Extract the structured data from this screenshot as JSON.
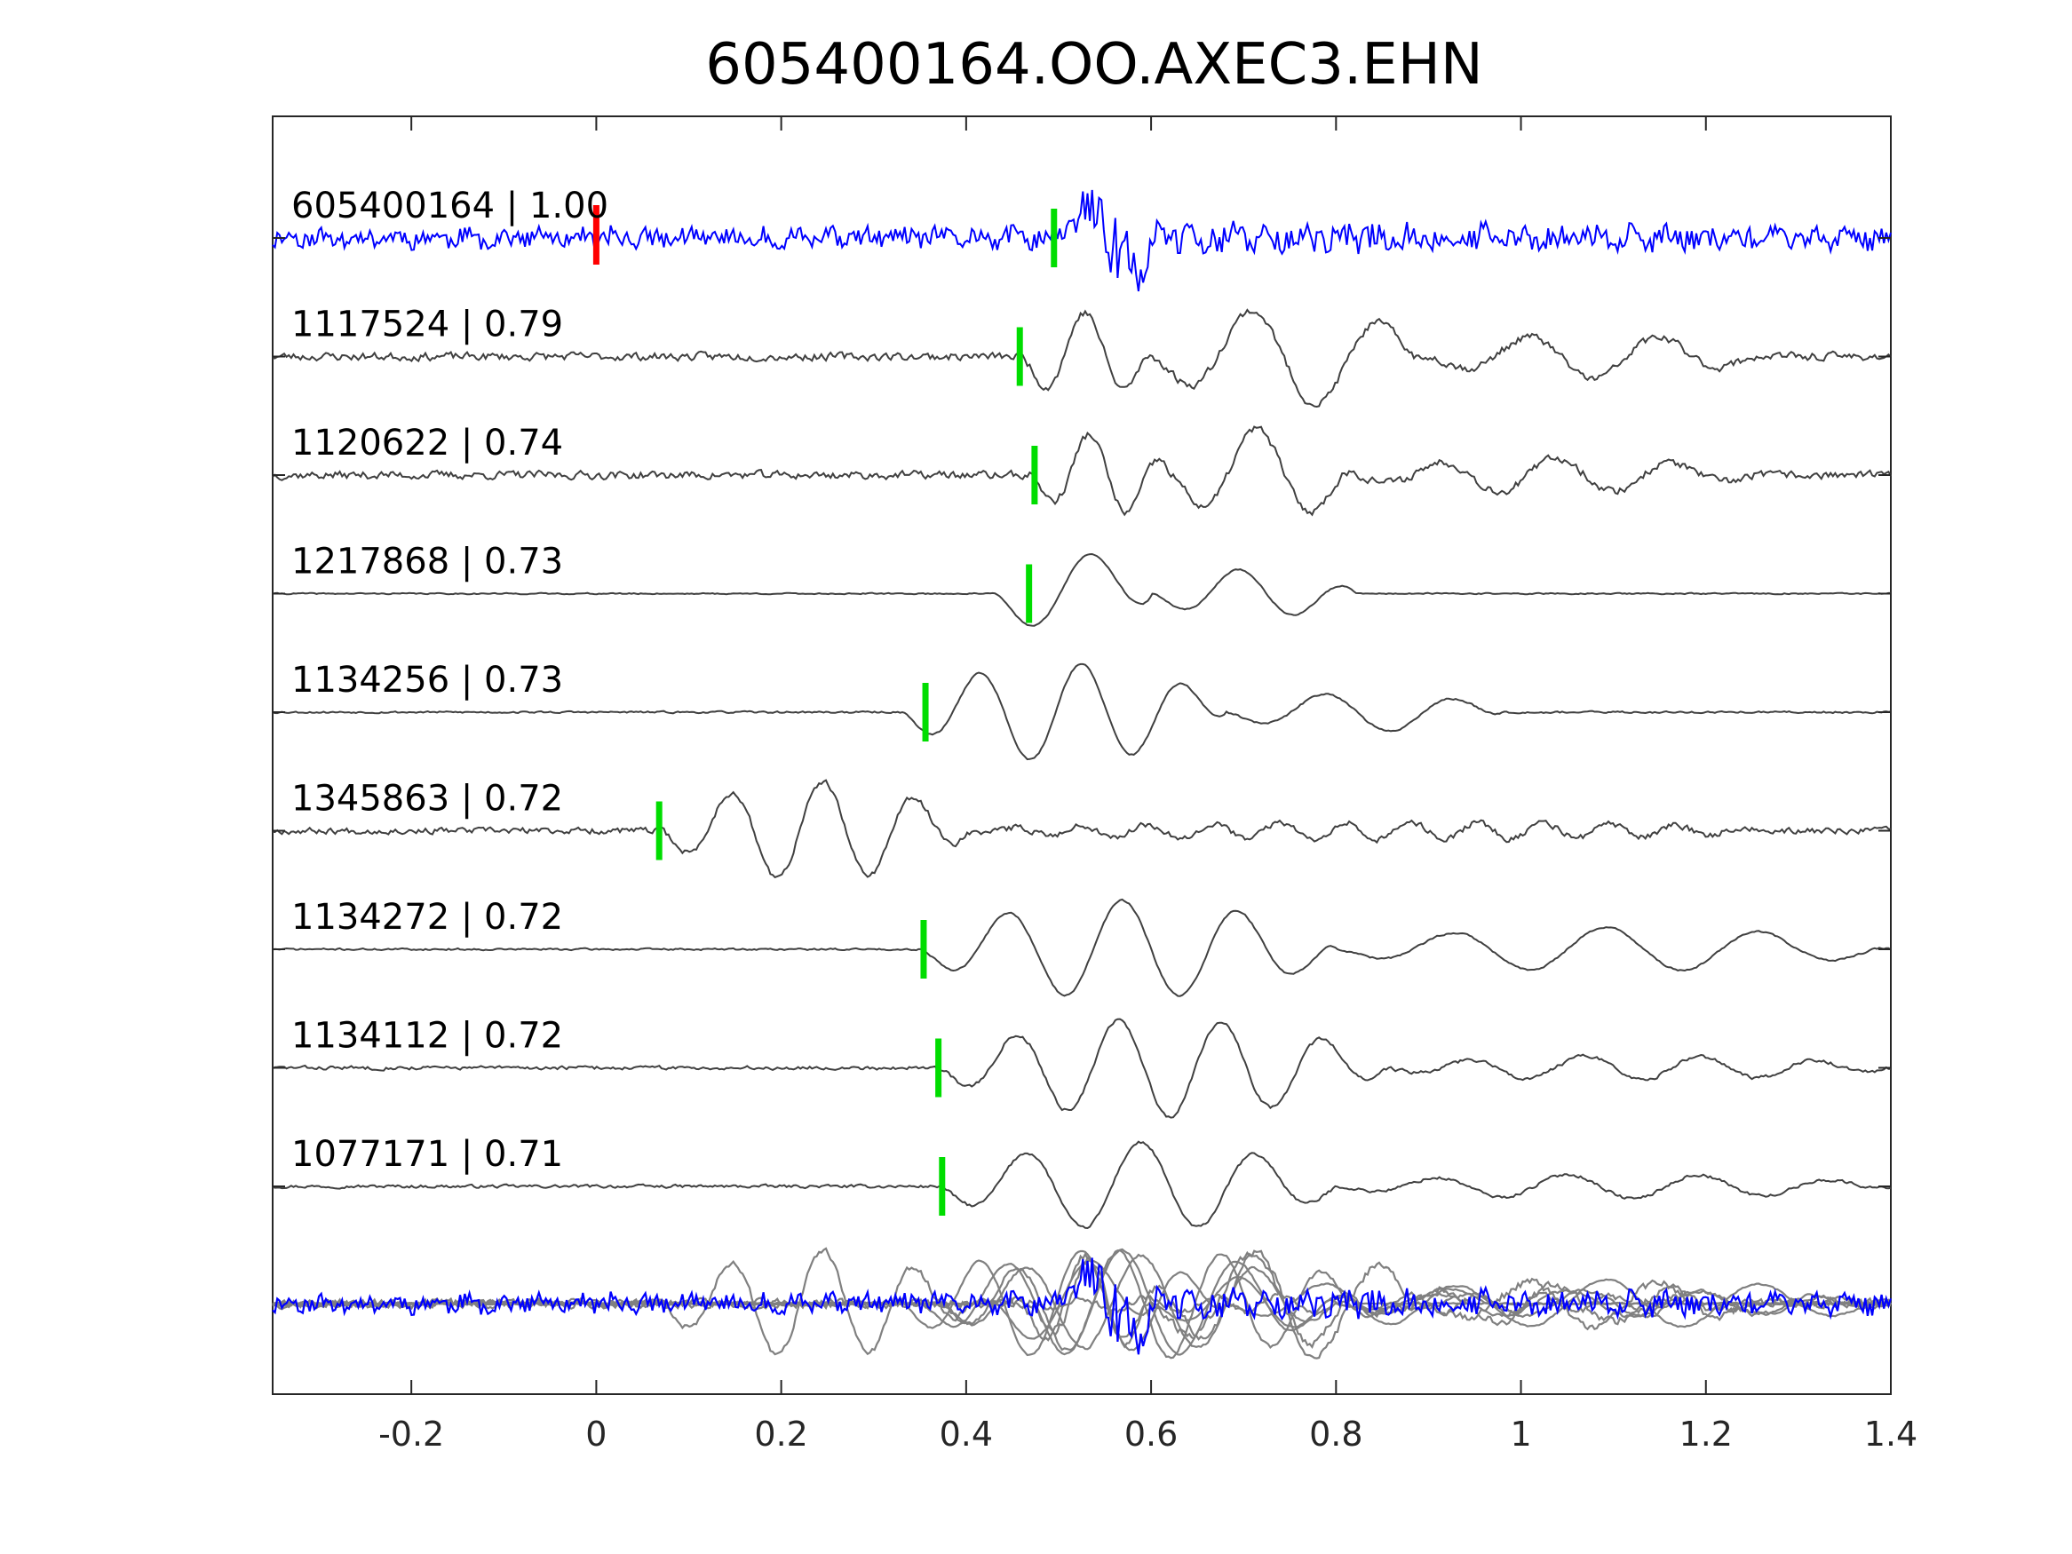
{
  "chart_data": {
    "type": "line",
    "title": "605400164.OO.AXEC3.EHN",
    "xlabel": "",
    "ylabel": "",
    "xlim": [
      -0.35,
      1.4
    ],
    "x_ticks": [
      -0.2,
      0,
      0.2,
      0.4,
      0.6,
      0.8,
      1,
      1.2,
      1.4
    ],
    "x_tick_labels": [
      "-0.2",
      "0",
      "0.2",
      "0.4",
      "0.6",
      "0.8",
      "1",
      "1.2",
      "1.4"
    ],
    "grid": false,
    "legend": "none",
    "colors": {
      "target": "#0000ff",
      "template": "#404040",
      "stack_template": "#808080",
      "pick_target": "#ff0000",
      "pick_template": "#00dd00",
      "axes": "#262626"
    },
    "traces": [
      {
        "label": "605400164 | 1.00",
        "id": "605400164",
        "cc": 1.0,
        "pick_time": 0.0,
        "arrival_time": 0.495,
        "color": "target",
        "env": [
          [
            -0.35,
            0.18
          ],
          [
            0.5,
            0.22
          ],
          [
            0.52,
            0.6
          ],
          [
            0.56,
            1.0
          ],
          [
            0.6,
            0.5
          ],
          [
            0.7,
            0.3
          ],
          [
            1.4,
            0.22
          ]
        ],
        "noise": 0.18,
        "seed": 11
      },
      {
        "label": "1117524 | 0.79",
        "id": "1117524",
        "cc": 0.79,
        "arrival_time": 0.458,
        "color": "template",
        "osc": [
          [
            0.46,
            0.6,
            0.9,
            11
          ],
          [
            0.6,
            0.9,
            1.0,
            7
          ],
          [
            0.9,
            1.25,
            0.45,
            7
          ]
        ],
        "noise": 0.13,
        "seed": 23
      },
      {
        "label": "1120622 | 0.74",
        "id": "1120622",
        "cc": 0.74,
        "arrival_time": 0.474,
        "color": "template",
        "osc": [
          [
            0.47,
            0.62,
            0.85,
            12
          ],
          [
            0.62,
            0.82,
            0.95,
            8
          ],
          [
            0.82,
            1.25,
            0.35,
            8
          ]
        ],
        "noise": 0.13,
        "seed": 37
      },
      {
        "label": "1217868 | 0.73",
        "id": "1217868",
        "cc": 0.73,
        "arrival_time": 0.468,
        "color": "template",
        "osc": [
          [
            0.43,
            0.6,
            0.85,
            7
          ],
          [
            0.6,
            0.82,
            0.5,
            8
          ]
        ],
        "noise": 0.02,
        "seed": 41
      },
      {
        "label": "1134256 | 0.73",
        "id": "1134256",
        "cc": 0.73,
        "arrival_time": 0.356,
        "color": "template",
        "osc": [
          [
            0.33,
            0.68,
            1.0,
            9
          ],
          [
            0.68,
            0.98,
            0.4,
            7
          ]
        ],
        "noise": 0.03,
        "seed": 53
      },
      {
        "label": "1345863 | 0.72",
        "id": "1345863",
        "cc": 0.72,
        "arrival_time": 0.068,
        "color": "template",
        "osc": [
          [
            0.07,
            0.4,
            1.0,
            10
          ],
          [
            0.4,
            1.3,
            0.18,
            14
          ]
        ],
        "noise": 0.1,
        "seed": 67
      },
      {
        "label": "1134272 | 0.72",
        "id": "1134272",
        "cc": 0.72,
        "arrival_time": 0.354,
        "color": "template",
        "osc": [
          [
            0.35,
            0.8,
            1.0,
            8
          ],
          [
            0.8,
            1.4,
            0.45,
            6
          ]
        ],
        "noise": 0.03,
        "seed": 71
      },
      {
        "label": "1134112 | 0.72",
        "id": "1134112",
        "cc": 0.72,
        "arrival_time": 0.37,
        "color": "template",
        "osc": [
          [
            0.37,
            0.85,
            1.0,
            9
          ],
          [
            0.85,
            1.4,
            0.25,
            8
          ]
        ],
        "noise": 0.06,
        "seed": 83
      },
      {
        "label": "1077171 | 0.71",
        "id": "1077171",
        "cc": 0.71,
        "arrival_time": 0.374,
        "color": "template",
        "osc": [
          [
            0.37,
            0.8,
            0.9,
            8
          ],
          [
            0.8,
            1.4,
            0.25,
            7
          ]
        ],
        "noise": 0.05,
        "seed": 97
      }
    ]
  }
}
